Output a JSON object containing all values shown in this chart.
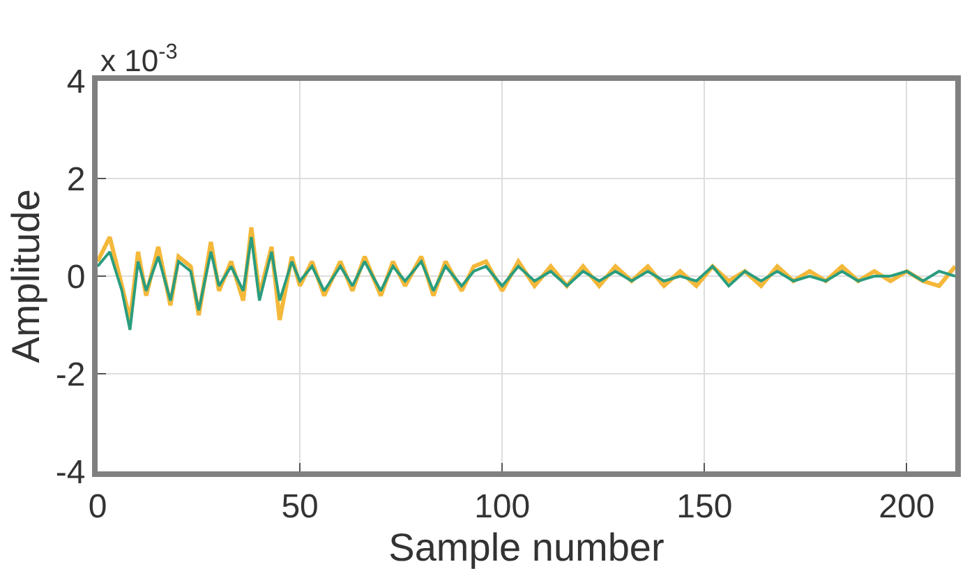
{
  "chart_data": {
    "type": "line",
    "xlabel": "Sample number",
    "ylabel": "Amplitude",
    "annotations": [
      "x 10$^{-3}$"
    ],
    "x": [
      0,
      3,
      6,
      8,
      10,
      12,
      15,
      18,
      20,
      23,
      25,
      28,
      30,
      33,
      36,
      38,
      40,
      43,
      45,
      48,
      50,
      53,
      56,
      60,
      63,
      66,
      70,
      73,
      76,
      80,
      83,
      86,
      90,
      93,
      96,
      100,
      104,
      108,
      112,
      116,
      120,
      124,
      128,
      132,
      136,
      140,
      144,
      148,
      152,
      156,
      160,
      164,
      168,
      172,
      176,
      180,
      184,
      188,
      192,
      196,
      200,
      204,
      208,
      212
    ],
    "series": [
      {
        "color": "#f4b83a",
        "values": [
          0.3,
          0.8,
          -0.2,
          -0.9,
          0.5,
          -0.4,
          0.6,
          -0.6,
          0.4,
          0.2,
          -0.8,
          0.7,
          -0.3,
          0.3,
          -0.5,
          1.0,
          -0.4,
          0.6,
          -0.9,
          0.4,
          -0.2,
          0.3,
          -0.4,
          0.3,
          -0.3,
          0.4,
          -0.4,
          0.3,
          -0.2,
          0.4,
          -0.4,
          0.3,
          -0.3,
          0.2,
          0.3,
          -0.3,
          0.3,
          -0.2,
          0.2,
          -0.2,
          0.2,
          -0.2,
          0.2,
          -0.1,
          0.2,
          -0.2,
          0.1,
          -0.2,
          0.2,
          -0.1,
          0.1,
          -0.2,
          0.2,
          -0.1,
          0.1,
          -0.1,
          0.2,
          -0.1,
          0.1,
          -0.1,
          0.1,
          -0.1,
          -0.2,
          0.2
        ]
      },
      {
        "color": "#2a9d7f",
        "values": [
          0.2,
          0.5,
          -0.3,
          -1.1,
          0.3,
          -0.3,
          0.4,
          -0.5,
          0.3,
          0.1,
          -0.7,
          0.5,
          -0.2,
          0.2,
          -0.3,
          0.8,
          -0.5,
          0.5,
          -0.5,
          0.3,
          -0.1,
          0.2,
          -0.3,
          0.2,
          -0.2,
          0.3,
          -0.3,
          0.2,
          -0.1,
          0.3,
          -0.3,
          0.2,
          -0.2,
          0.1,
          0.2,
          -0.2,
          0.2,
          -0.1,
          0.1,
          -0.2,
          0.1,
          -0.1,
          0.1,
          -0.1,
          0.1,
          -0.1,
          0.0,
          -0.1,
          0.2,
          -0.2,
          0.1,
          -0.1,
          0.1,
          -0.1,
          0.0,
          -0.1,
          0.1,
          -0.1,
          0.0,
          0.0,
          0.1,
          -0.1,
          0.1,
          0.0
        ]
      }
    ],
    "xlim": [
      0,
      212
    ],
    "xticks": [
      0,
      50,
      100,
      150,
      200
    ],
    "ylim": [
      -4,
      4
    ],
    "yticks": [
      4,
      2,
      0,
      -2,
      -4
    ],
    "grid": true,
    "legend": false
  }
}
